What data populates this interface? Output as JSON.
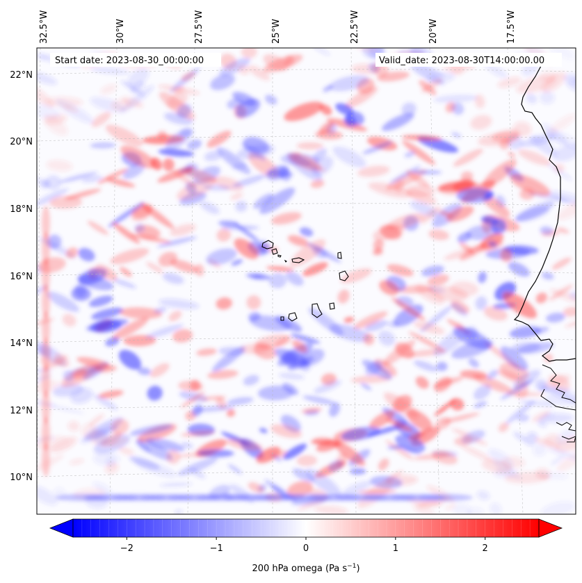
{
  "annotations": {
    "start_date": "Start date: 2023-08-30_00:00:00",
    "valid_date": "Valid_date: 2023-08-30T14:00:00.00"
  },
  "map": {
    "projection": "lambert-conformal",
    "gridlines": true,
    "lon_labels": [
      "32.5°W",
      "30°W",
      "27.5°W",
      "25°W",
      "22.5°W",
      "20°W",
      "17.5°W"
    ],
    "lat_labels": [
      "22°N",
      "20°N",
      "18°N",
      "16°N",
      "14°N",
      "12°N",
      "10°N"
    ],
    "features": [
      "coastline-west-africa",
      "cape-verde-islands"
    ],
    "field_palette": {
      "negative": "#0000ff",
      "zero": "#ffffff",
      "positive": "#ff0000"
    }
  },
  "colorbar": {
    "label": "200 hPa omega (Pa s",
    "label_sup": "−1",
    "label_close": ")",
    "ticks": [
      "−2",
      "−1",
      "0",
      "1",
      "2"
    ],
    "tick_values": [
      -2,
      -1,
      0,
      1,
      2
    ],
    "vmin": -2.6,
    "vmax": 2.6,
    "extend": "both",
    "cmap": "bwr"
  }
}
